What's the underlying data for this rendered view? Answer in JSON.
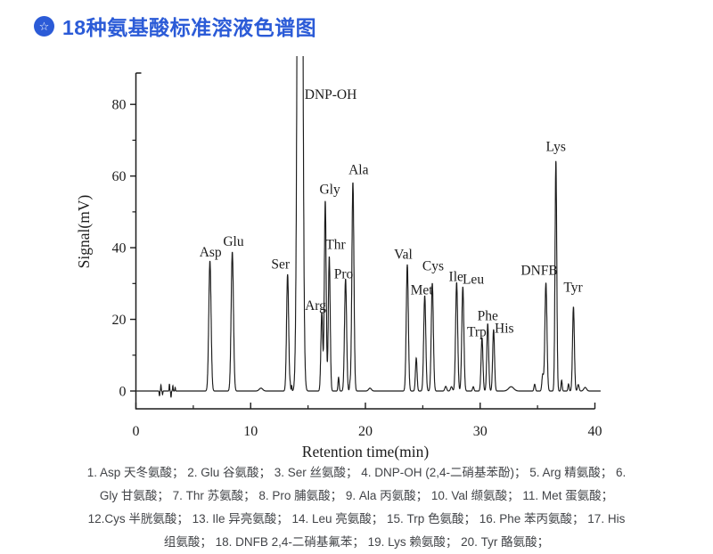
{
  "header": {
    "icon": "star-badge-icon",
    "title": "18种氨基酸标准溶液色谱图",
    "accent_color": "#2b5bd7",
    "star_glyph": "☆"
  },
  "chart_data": {
    "type": "line",
    "title": "",
    "xlabel": "Retention time(min)",
    "ylabel": "Signal(mV)",
    "xlim": [
      0,
      40.5
    ],
    "ylim": [
      -5,
      89
    ],
    "x_major_ticks": [
      0,
      10,
      20,
      30,
      40
    ],
    "x_minor_ticks": [
      5,
      15,
      25,
      35
    ],
    "y_major_ticks": [
      0,
      20,
      40,
      60,
      80
    ],
    "y_minor_ticks": [
      10,
      30,
      50,
      70
    ],
    "grid": false,
    "legend": "none",
    "line_color": "#1c1c1c",
    "axis_color": "#1c1c1c",
    "series": [
      {
        "name": "18 amino acid standard solution",
        "x_units": "min",
        "y_units": "mV",
        "peaks": [
          {
            "name": "Asp",
            "t": 6.45,
            "mv": 36.3,
            "sigma": 0.1
          },
          {
            "name": "Glu",
            "t": 8.4,
            "mv": 38.8,
            "sigma": 0.1
          },
          {
            "name": "Ser",
            "t": 13.22,
            "mv": 32.6,
            "sigma": 0.09
          },
          {
            "name": "DNP-OH",
            "t": 14.3,
            "mv": 400,
            "sigma": 0.16,
            "clipped": true
          },
          {
            "name": "Arg",
            "t": 16.2,
            "mv": 22.0,
            "sigma": 0.08
          },
          {
            "name": "Gly",
            "t": 16.5,
            "mv": 53.0,
            "sigma": 0.08
          },
          {
            "name": "Thr",
            "t": 16.85,
            "mv": 37.5,
            "sigma": 0.08
          },
          {
            "name": "Pro",
            "t": 18.27,
            "mv": 31.3,
            "sigma": 0.09
          },
          {
            "name": "Ala",
            "t": 18.91,
            "mv": 58.2,
            "sigma": 0.09
          },
          {
            "name": "Val",
            "t": 23.65,
            "mv": 35.3,
            "sigma": 0.09
          },
          {
            "name": "Met",
            "t": 25.17,
            "mv": 26.6,
            "sigma": 0.09
          },
          {
            "name": "Cys",
            "t": 25.83,
            "mv": 30.1,
            "sigma": 0.09
          },
          {
            "name": "Ile",
            "t": 27.95,
            "mv": 30.3,
            "sigma": 0.09
          },
          {
            "name": "Leu",
            "t": 28.49,
            "mv": 29.1,
            "sigma": 0.09
          },
          {
            "name": "Trp",
            "t": 30.16,
            "mv": 14.9,
            "sigma": 0.08
          },
          {
            "name": "Phe",
            "t": 30.66,
            "mv": 18.8,
            "sigma": 0.08
          },
          {
            "name": "His",
            "t": 31.17,
            "mv": 17.2,
            "sigma": 0.08
          },
          {
            "name": "DNFB",
            "t": 35.73,
            "mv": 30.2,
            "sigma": 0.09
          },
          {
            "name": "Lys",
            "t": 36.6,
            "mv": 64.2,
            "sigma": 0.075
          },
          {
            "name": "Tyr",
            "t": 38.13,
            "mv": 23.5,
            "sigma": 0.08
          }
        ],
        "minor_peaks": [
          [
            10.9,
            0.8,
            0.15
          ],
          [
            13.45,
            1.3,
            0.03
          ],
          [
            13.57,
            1.6,
            0.03
          ],
          [
            17.66,
            3.8,
            0.05
          ],
          [
            18.65,
            1.8,
            0.04
          ],
          [
            20.4,
            0.8,
            0.12
          ],
          [
            24.43,
            9.2,
            0.07
          ],
          [
            27.0,
            1.3,
            0.08
          ],
          [
            27.5,
            1.2,
            0.08
          ],
          [
            29.4,
            1.2,
            0.06
          ],
          [
            32.7,
            1.2,
            0.22
          ],
          [
            34.75,
            1.9,
            0.06
          ],
          [
            35.45,
            4.5,
            0.07
          ],
          [
            37.1,
            3.0,
            0.05
          ],
          [
            37.7,
            2.0,
            0.05
          ],
          [
            38.55,
            1.8,
            0.07
          ],
          [
            39.15,
            1.0,
            0.12
          ]
        ],
        "noise_blips": [
          [
            2.05,
            -1.4
          ],
          [
            2.18,
            1.7
          ],
          [
            2.32,
            -1.0
          ],
          [
            2.92,
            2.0
          ],
          [
            3.06,
            -1.8
          ],
          [
            3.22,
            1.5
          ],
          [
            3.42,
            1.0
          ]
        ]
      }
    ],
    "peak_labels": [
      {
        "text": "Asp",
        "t": 6.5,
        "mv": 37.5,
        "anchor": "middle"
      },
      {
        "text": "Glu",
        "t": 8.5,
        "mv": 40.5,
        "anchor": "middle"
      },
      {
        "text": "Ser",
        "t": 12.6,
        "mv": 34.2,
        "anchor": "middle"
      },
      {
        "text": "DNP-OH",
        "t": 14.7,
        "mv": 81.6,
        "anchor": "start"
      },
      {
        "text": "Arg",
        "t": 15.65,
        "mv": 22.6,
        "anchor": "middle"
      },
      {
        "text": "Gly",
        "t": 16.9,
        "mv": 55.1,
        "anchor": "middle"
      },
      {
        "text": "Thr",
        "t": 17.4,
        "mv": 39.7,
        "anchor": "middle"
      },
      {
        "text": "Pro",
        "t": 18.1,
        "mv": 31.5,
        "anchor": "middle"
      },
      {
        "text": "Ala",
        "t": 19.4,
        "mv": 60.5,
        "anchor": "middle"
      },
      {
        "text": "Val",
        "t": 23.3,
        "mv": 36.9,
        "anchor": "middle"
      },
      {
        "text": "Met",
        "t": 24.9,
        "mv": 27.0,
        "anchor": "middle"
      },
      {
        "text": "Cys",
        "t": 25.9,
        "mv": 33.7,
        "anchor": "middle"
      },
      {
        "text": "Ile",
        "t": 27.9,
        "mv": 30.7,
        "anchor": "middle"
      },
      {
        "text": "Leu",
        "t": 29.4,
        "mv": 30.0,
        "anchor": "middle"
      },
      {
        "text": "Trp",
        "t": 29.7,
        "mv": 15.3,
        "anchor": "middle"
      },
      {
        "text": "Phe",
        "t": 30.66,
        "mv": 19.8,
        "anchor": "middle"
      },
      {
        "text": "His",
        "t": 32.1,
        "mv": 16.3,
        "anchor": "middle"
      },
      {
        "text": "DNFB",
        "t": 35.15,
        "mv": 32.5,
        "anchor": "middle"
      },
      {
        "text": "Lys",
        "t": 36.6,
        "mv": 67.0,
        "anchor": "middle"
      },
      {
        "text": "Tyr",
        "t": 38.1,
        "mv": 27.7,
        "anchor": "middle"
      }
    ]
  },
  "caption": {
    "lines": [
      "1. Asp 天冬氨酸； 2. Glu 谷氨酸； 3. Ser 丝氨酸； 4. DNP-OH (2,4-二硝基苯酚)； 5. Arg 精氨酸； 6.",
      "Gly 甘氨酸； 7. Thr 苏氨酸； 8. Pro 脯氨酸； 9. Ala 丙氨酸； 10. Val 缬氨酸； 11. Met 蛋氨酸；",
      "12.Cys 半胱氨酸； 13. Ile 异亮氨酸； 14. Leu 亮氨酸； 15. Trp 色氨酸； 16. Phe 苯丙氨酸； 17. His",
      "组氨酸； 18. DNFB 2,4-二硝基氟苯； 19. Lys 赖氨酸； 20. Tyr 酪氨酸；"
    ]
  }
}
